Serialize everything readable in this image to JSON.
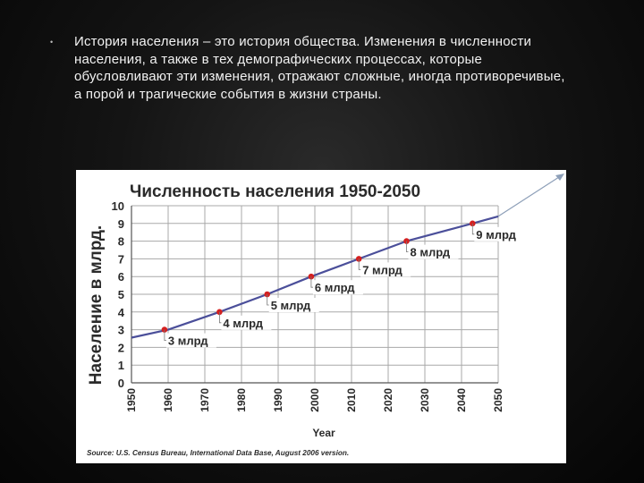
{
  "slide": {
    "bullet": "•",
    "text": "История населения – это история общества. Изменения в численности населения, а также в тех демографических процессах, которые обусловливают эти изменения, отражают сложные, иногда противоречивые, а порой и трагические события в жизни страны."
  },
  "chart_data": {
    "type": "line",
    "title": "Численность населения 1950-2050",
    "xlabel": "Year",
    "ylabel": "Население в млрд.",
    "xlim": [
      1950,
      2050
    ],
    "ylim": [
      0,
      10
    ],
    "x_ticks": [
      "1950",
      "1960",
      "1970",
      "1980",
      "1990",
      "2000",
      "2010",
      "2020",
      "2030",
      "2040",
      "2050"
    ],
    "y_ticks": [
      "0",
      "1",
      "2",
      "3",
      "4",
      "5",
      "6",
      "7",
      "8",
      "9",
      "10"
    ],
    "grid": true,
    "series": [
      {
        "values": [
          [
            1950,
            2.55
          ],
          [
            1960,
            3.0
          ],
          [
            1974,
            4.0
          ],
          [
            1987,
            5.0
          ],
          [
            1999,
            6.0
          ],
          [
            2012,
            7.0
          ],
          [
            2025,
            8.0
          ],
          [
            2043,
            9.0
          ],
          [
            2050,
            9.4
          ]
        ]
      }
    ],
    "milestones": [
      {
        "x": 1959,
        "y": 3,
        "label": "3 млрд"
      },
      {
        "x": 1974,
        "y": 4,
        "label": "4 млрд"
      },
      {
        "x": 1987,
        "y": 5,
        "label": "5 млрд"
      },
      {
        "x": 1999,
        "y": 6,
        "label": "6 млрд"
      },
      {
        "x": 2012,
        "y": 7,
        "label": "7 млрд"
      },
      {
        "x": 2025,
        "y": 8,
        "label": "8 млрд"
      },
      {
        "x": 2043,
        "y": 9,
        "label": "9 млрд"
      }
    ],
    "source": "Source: U.S. Census Bureau, International Data Base, August 2006 version.",
    "colors": {
      "line": "#4b4f9a",
      "marker": "#d42020",
      "grid": "#a8a8a8",
      "arrow": "#8d9fb8"
    }
  }
}
